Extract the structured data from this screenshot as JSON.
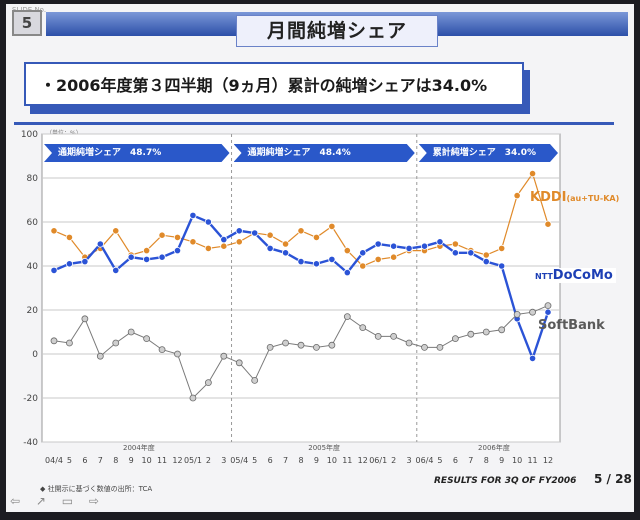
{
  "slide": {
    "corner_label": "SLIDE No.",
    "number": "5",
    "title": "月間純増シェア",
    "headline": "・2006年度第３四半期（9ヵ月）累計の純増シェアは34.0%",
    "unit_label": "（単位：%）",
    "footer": "RESULTS FOR 3Q OF FY2006",
    "pager": "5 / 28",
    "source": "◆ 社開示に基づく数値の出所：TCA",
    "nav": "⇦ ↗ ▭ ⇨"
  },
  "colors": {
    "kddi": "#e08a2a",
    "docomo": "#2b53d6",
    "softbank": "#7a7a7a",
    "banner": "#2a58c9"
  },
  "banners": [
    {
      "label": "通期純増シェア　48.7%"
    },
    {
      "label": "通期純増シェア　48.4%"
    },
    {
      "label": "累計純増シェア　34.0%"
    }
  ],
  "carriers": {
    "kddi": {
      "name": "KDDI",
      "sub": "(au+TU-KA)"
    },
    "docomo": {
      "prefix": "NTT",
      "name": "DoCoMo"
    },
    "softbank": {
      "name": "SoftBank"
    }
  },
  "chart_data": {
    "type": "line",
    "title": "月間純増シェア",
    "ylabel": "（単位：%）",
    "ylim": [
      -40,
      100
    ],
    "yticks": [
      -40,
      -20,
      0,
      20,
      40,
      60,
      80,
      100
    ],
    "grid": true,
    "year_labels": [
      "2004年度",
      "2005年度",
      "2006年度"
    ],
    "categories": [
      "04/4",
      "5",
      "6",
      "7",
      "8",
      "9",
      "10",
      "11",
      "12",
      "05/1",
      "2",
      "3",
      "05/4",
      "5",
      "6",
      "7",
      "8",
      "9",
      "10",
      "11",
      "12",
      "06/1",
      "2",
      "3",
      "06/4",
      "5",
      "6",
      "7",
      "8",
      "9",
      "10",
      "11",
      "12"
    ],
    "x_labels": [
      "04/4",
      "5",
      "6",
      "7",
      "8",
      "9",
      "10",
      "11",
      "12",
      "05/1",
      "2",
      "3",
      "05/4",
      "5",
      "6",
      "7",
      "8",
      "9",
      "10",
      "11",
      "12",
      "06/1",
      "2",
      "3",
      "06/4",
      "5",
      "6",
      "7",
      "8",
      "9",
      "10",
      "11",
      "12"
    ],
    "series": [
      {
        "name": "KDDI(au+TU-KA)",
        "values": [
          56,
          53,
          44,
          48,
          56,
          45,
          47,
          54,
          53,
          51,
          48,
          49,
          51,
          55,
          54,
          50,
          56,
          53,
          58,
          47,
          40,
          43,
          44,
          47,
          47,
          49,
          50,
          47,
          45,
          48,
          72,
          82,
          59
        ]
      },
      {
        "name": "NTT DoCoMo",
        "values": [
          38,
          41,
          42,
          50,
          38,
          44,
          43,
          44,
          47,
          63,
          60,
          52,
          56,
          55,
          48,
          46,
          42,
          41,
          43,
          37,
          46,
          50,
          49,
          48,
          49,
          51,
          46,
          46,
          42,
          40,
          16,
          -2,
          19
        ]
      },
      {
        "name": "SoftBank",
        "values": [
          6,
          5,
          16,
          -1,
          5,
          10,
          7,
          2,
          0,
          -20,
          -13,
          -1,
          -4,
          -12,
          3,
          5,
          4,
          3,
          4,
          17,
          12,
          8,
          8,
          5,
          3,
          3,
          7,
          9,
          10,
          11,
          18,
          19,
          22
        ]
      }
    ]
  }
}
